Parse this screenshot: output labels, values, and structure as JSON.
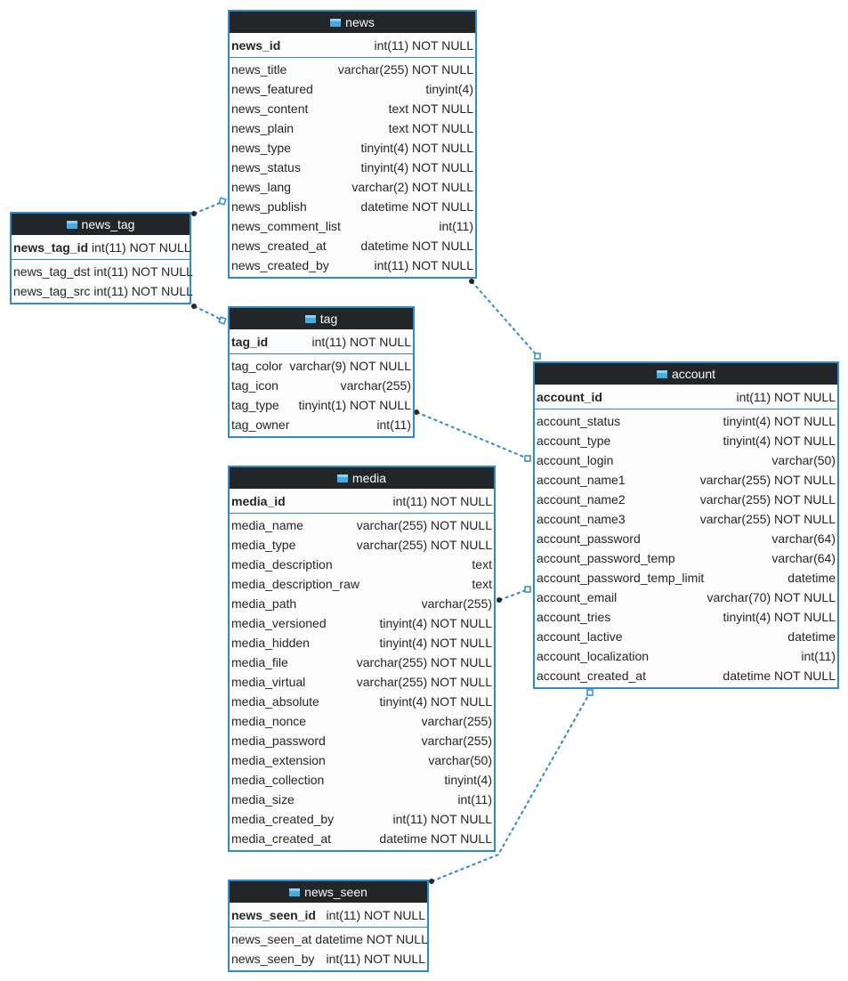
{
  "tables": [
    {
      "name": "news",
      "primary_key": {
        "name": "news_id",
        "type": "int(11) NOT NULL"
      },
      "columns": [
        {
          "name": "news_title",
          "type": "varchar(255) NOT NULL"
        },
        {
          "name": "news_featured",
          "type": "tinyint(4)"
        },
        {
          "name": "news_content",
          "type": "text NOT NULL"
        },
        {
          "name": "news_plain",
          "type": "text NOT NULL"
        },
        {
          "name": "news_type",
          "type": "tinyint(4) NOT NULL"
        },
        {
          "name": "news_status",
          "type": "tinyint(4) NOT NULL"
        },
        {
          "name": "news_lang",
          "type": "varchar(2) NOT NULL"
        },
        {
          "name": "news_publish",
          "type": "datetime NOT NULL"
        },
        {
          "name": "news_comment_list",
          "type": "int(11)"
        },
        {
          "name": "news_created_at",
          "type": "datetime NOT NULL"
        },
        {
          "name": "news_created_by",
          "type": "int(11) NOT NULL"
        }
      ]
    },
    {
      "name": "news_tag",
      "primary_key": {
        "name": "news_tag_id",
        "type": "int(11) NOT NULL"
      },
      "columns": [
        {
          "name": "news_tag_dst",
          "type": "int(11) NOT NULL"
        },
        {
          "name": "news_tag_src",
          "type": "int(11) NOT NULL"
        }
      ]
    },
    {
      "name": "tag",
      "primary_key": {
        "name": "tag_id",
        "type": "int(11) NOT NULL"
      },
      "columns": [
        {
          "name": "tag_color",
          "type": "varchar(9) NOT NULL"
        },
        {
          "name": "tag_icon",
          "type": "varchar(255)"
        },
        {
          "name": "tag_type",
          "type": "tinyint(1) NOT NULL"
        },
        {
          "name": "tag_owner",
          "type": "int(11)"
        }
      ]
    },
    {
      "name": "media",
      "primary_key": {
        "name": "media_id",
        "type": "int(11) NOT NULL"
      },
      "columns": [
        {
          "name": "media_name",
          "type": "varchar(255) NOT NULL"
        },
        {
          "name": "media_type",
          "type": "varchar(255) NOT NULL"
        },
        {
          "name": "media_description",
          "type": "text"
        },
        {
          "name": "media_description_raw",
          "type": "text"
        },
        {
          "name": "media_path",
          "type": "varchar(255)"
        },
        {
          "name": "media_versioned",
          "type": "tinyint(4) NOT NULL"
        },
        {
          "name": "media_hidden",
          "type": "tinyint(4) NOT NULL"
        },
        {
          "name": "media_file",
          "type": "varchar(255) NOT NULL"
        },
        {
          "name": "media_virtual",
          "type": "varchar(255) NOT NULL"
        },
        {
          "name": "media_absolute",
          "type": "tinyint(4) NOT NULL"
        },
        {
          "name": "media_nonce",
          "type": "varchar(255)"
        },
        {
          "name": "media_password",
          "type": "varchar(255)"
        },
        {
          "name": "media_extension",
          "type": "varchar(50)"
        },
        {
          "name": "media_collection",
          "type": "tinyint(4)"
        },
        {
          "name": "media_size",
          "type": "int(11)"
        },
        {
          "name": "media_created_by",
          "type": "int(11) NOT NULL"
        },
        {
          "name": "media_created_at",
          "type": "datetime NOT NULL"
        }
      ]
    },
    {
      "name": "account",
      "primary_key": {
        "name": "account_id",
        "type": "int(11) NOT NULL"
      },
      "columns": [
        {
          "name": "account_status",
          "type": "tinyint(4) NOT NULL"
        },
        {
          "name": "account_type",
          "type": "tinyint(4) NOT NULL"
        },
        {
          "name": "account_login",
          "type": "varchar(50)"
        },
        {
          "name": "account_name1",
          "type": "varchar(255) NOT NULL"
        },
        {
          "name": "account_name2",
          "type": "varchar(255) NOT NULL"
        },
        {
          "name": "account_name3",
          "type": "varchar(255) NOT NULL"
        },
        {
          "name": "account_password",
          "type": "varchar(64)"
        },
        {
          "name": "account_password_temp",
          "type": "varchar(64)"
        },
        {
          "name": "account_password_temp_limit",
          "type": "datetime"
        },
        {
          "name": "account_email",
          "type": "varchar(70) NOT NULL"
        },
        {
          "name": "account_tries",
          "type": "tinyint(4) NOT NULL"
        },
        {
          "name": "account_lactive",
          "type": "datetime"
        },
        {
          "name": "account_localization",
          "type": "int(11)"
        },
        {
          "name": "account_created_at",
          "type": "datetime NOT NULL"
        }
      ]
    },
    {
      "name": "news_seen",
      "primary_key": {
        "name": "news_seen_id",
        "type": "int(11) NOT NULL"
      },
      "columns": [
        {
          "name": "news_seen_at",
          "type": "datetime NOT NULL"
        },
        {
          "name": "news_seen_by",
          "type": "int(11) NOT NULL"
        }
      ]
    }
  ]
}
